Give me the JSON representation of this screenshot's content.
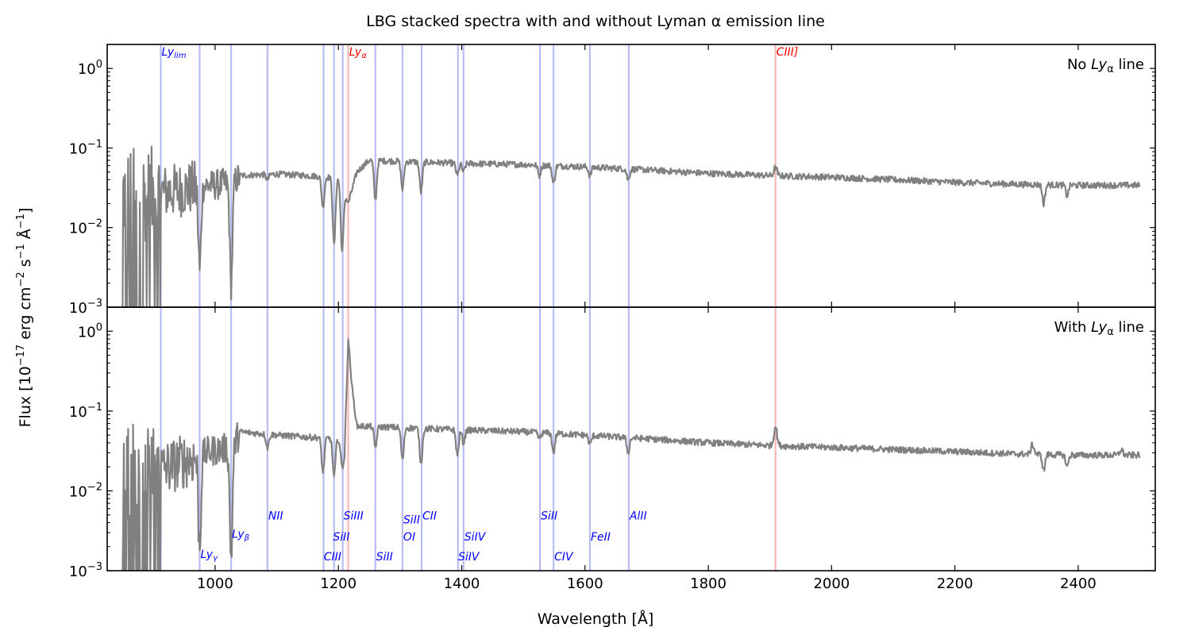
{
  "figure": {
    "title": "LBG stacked spectra with and without Lyman α emission line",
    "xlabel": "Wavelength [Å]",
    "ylabel_main": "Flux [10",
    "ylabel_exp1": "−17",
    "ylabel_mid": " erg cm",
    "ylabel_exp2": "−2",
    "ylabel_mid2": " s",
    "ylabel_exp3": "−1",
    "ylabel_mid3": " Å",
    "ylabel_exp4": "−1",
    "ylabel_end": "]"
  },
  "colors": {
    "spectrum": "#808080",
    "absorption_line": "#b8bcf4",
    "emission_line": "#f4b8b8",
    "absorption_text": "#0000ff",
    "emission_text": "#ff0000"
  },
  "chart_data": [
    {
      "panel": "top",
      "type": "line",
      "title": "",
      "label": "No Lyα line",
      "label_text": "No ",
      "label_main": "Ly",
      "label_sub": "α",
      "label_tail": " line",
      "xlim": [
        825,
        2525
      ],
      "ylim": [
        0.001,
        2.0
      ],
      "yscale": "log",
      "xticks": [
        1000,
        1200,
        1400,
        1600,
        1800,
        2000,
        2200,
        2400
      ],
      "xticklabels": [],
      "yticks": [
        0.001,
        0.01,
        0.1,
        1
      ],
      "yticklabels": [
        {
          "base": "10",
          "exp": "−3"
        },
        {
          "base": "10",
          "exp": "−2"
        },
        {
          "base": "10",
          "exp": "−1"
        },
        {
          "base": "10",
          "exp": "0"
        }
      ],
      "continuum": [
        [
          912,
          0.03
        ],
        [
          975,
          0.035
        ],
        [
          1000,
          0.036
        ],
        [
          1026,
          0.038
        ],
        [
          1040,
          0.045
        ],
        [
          1100,
          0.047
        ],
        [
          1150,
          0.045
        ],
        [
          1200,
          0.042
        ],
        [
          1216,
          0.02
        ],
        [
          1230,
          0.05
        ],
        [
          1250,
          0.07
        ],
        [
          1300,
          0.068
        ],
        [
          1400,
          0.064
        ],
        [
          1500,
          0.062
        ],
        [
          1600,
          0.058
        ],
        [
          1700,
          0.053
        ],
        [
          1800,
          0.048
        ],
        [
          1900,
          0.045
        ],
        [
          2000,
          0.043
        ],
        [
          2100,
          0.04
        ],
        [
          2200,
          0.037
        ],
        [
          2300,
          0.035
        ],
        [
          2400,
          0.034
        ],
        [
          2500,
          0.034
        ]
      ],
      "features": [
        [
          975,
          0.003
        ],
        [
          1026,
          0.002
        ],
        [
          1085,
          0.04
        ],
        [
          1175,
          0.018
        ],
        [
          1193,
          0.006
        ],
        [
          1206,
          0.005
        ],
        [
          1260,
          0.022
        ],
        [
          1304,
          0.03
        ],
        [
          1334,
          0.028
        ],
        [
          1393,
          0.045
        ],
        [
          1403,
          0.05
        ],
        [
          1526,
          0.045
        ],
        [
          1549,
          0.035
        ],
        [
          1608,
          0.045
        ],
        [
          1670,
          0.04
        ],
        [
          2344,
          0.02
        ],
        [
          2382,
          0.025
        ]
      ],
      "emission": [
        [
          1909,
          0.057
        ]
      ]
    },
    {
      "panel": "bottom",
      "type": "line",
      "title": "",
      "label": "With Lyα line",
      "label_text": "With ",
      "label_main": "Ly",
      "label_sub": "α",
      "label_tail": " line",
      "xlim": [
        825,
        2525
      ],
      "ylim": [
        0.001,
        2.0
      ],
      "yscale": "log",
      "xticks": [
        1000,
        1200,
        1400,
        1600,
        1800,
        2000,
        2200,
        2400
      ],
      "xticklabels": [
        "1000",
        "1200",
        "1400",
        "1600",
        "1800",
        "2000",
        "2200",
        "2400"
      ],
      "yticks": [
        0.001,
        0.01,
        0.1,
        1
      ],
      "yticklabels": [
        {
          "base": "10",
          "exp": "−3"
        },
        {
          "base": "10",
          "exp": "−2"
        },
        {
          "base": "10",
          "exp": "−1"
        },
        {
          "base": "10",
          "exp": "0"
        }
      ],
      "continuum": [
        [
          912,
          0.02
        ],
        [
          975,
          0.03
        ],
        [
          1000,
          0.034
        ],
        [
          1026,
          0.036
        ],
        [
          1040,
          0.055
        ],
        [
          1100,
          0.05
        ],
        [
          1150,
          0.047
        ],
        [
          1200,
          0.045
        ],
        [
          1210,
          0.03
        ],
        [
          1216,
          0.82
        ],
        [
          1222,
          0.2
        ],
        [
          1230,
          0.065
        ],
        [
          1300,
          0.062
        ],
        [
          1400,
          0.058
        ],
        [
          1500,
          0.055
        ],
        [
          1600,
          0.05
        ],
        [
          1700,
          0.045
        ],
        [
          1800,
          0.04
        ],
        [
          1900,
          0.037
        ],
        [
          2000,
          0.035
        ],
        [
          2100,
          0.033
        ],
        [
          2200,
          0.031
        ],
        [
          2300,
          0.029
        ],
        [
          2400,
          0.028
        ],
        [
          2500,
          0.028
        ]
      ],
      "features": [
        [
          975,
          0.002
        ],
        [
          1026,
          0.0015
        ],
        [
          1085,
          0.035
        ],
        [
          1175,
          0.017
        ],
        [
          1193,
          0.015
        ],
        [
          1206,
          0.02
        ],
        [
          1260,
          0.035
        ],
        [
          1304,
          0.024
        ],
        [
          1334,
          0.022
        ],
        [
          1393,
          0.028
        ],
        [
          1403,
          0.04
        ],
        [
          1526,
          0.045
        ],
        [
          1549,
          0.03
        ],
        [
          1608,
          0.038
        ],
        [
          1670,
          0.03
        ],
        [
          2344,
          0.018
        ],
        [
          2382,
          0.02
        ]
      ],
      "emission": [
        [
          1909,
          0.065
        ],
        [
          2326,
          0.038
        ],
        [
          2470,
          0.033
        ]
      ]
    }
  ],
  "line_markers": [
    {
      "x": 912,
      "kind": "absorption"
    },
    {
      "x": 975,
      "kind": "absorption"
    },
    {
      "x": 1026,
      "kind": "absorption"
    },
    {
      "x": 1085,
      "kind": "absorption"
    },
    {
      "x": 1176,
      "kind": "absorption"
    },
    {
      "x": 1193,
      "kind": "absorption"
    },
    {
      "x": 1207,
      "kind": "absorption"
    },
    {
      "x": 1216,
      "kind": "emission"
    },
    {
      "x": 1260,
      "kind": "absorption"
    },
    {
      "x": 1304,
      "kind": "absorption"
    },
    {
      "x": 1335,
      "kind": "absorption"
    },
    {
      "x": 1394,
      "kind": "absorption"
    },
    {
      "x": 1403,
      "kind": "absorption"
    },
    {
      "x": 1527,
      "kind": "absorption"
    },
    {
      "x": 1549,
      "kind": "absorption"
    },
    {
      "x": 1608,
      "kind": "absorption"
    },
    {
      "x": 1671,
      "kind": "absorption"
    },
    {
      "x": 1909,
      "kind": "emission"
    }
  ],
  "line_labels": [
    {
      "id": "ly-lim",
      "panel": "top",
      "x": 912,
      "y": 1.45,
      "main": "Ly",
      "sub": "lim",
      "kind": "absorption"
    },
    {
      "id": "ly-alpha",
      "panel": "top",
      "x": 1216,
      "y": 1.45,
      "main": "Ly",
      "sub": "α",
      "kind": "emission"
    },
    {
      "id": "ciii-semi",
      "panel": "top",
      "x": 1909,
      "y": 1.45,
      "main": "CIII]",
      "sub": "",
      "kind": "emission"
    },
    {
      "id": "ly-gamma",
      "panel": "bottom",
      "x": 975,
      "y": 0.00145,
      "main": "Ly",
      "sub": "γ",
      "kind": "absorption"
    },
    {
      "id": "ly-beta",
      "panel": "bottom",
      "x": 1026,
      "y": 0.0026,
      "main": "Ly",
      "sub": "β",
      "kind": "absorption"
    },
    {
      "id": "nii",
      "panel": "bottom",
      "x": 1085,
      "y": 0.0044,
      "main": "NII",
      "sub": "",
      "kind": "absorption"
    },
    {
      "id": "ciii",
      "panel": "bottom",
      "x": 1175,
      "y": 0.00135,
      "main": "CIII",
      "sub": "",
      "kind": "absorption"
    },
    {
      "id": "sii-1190",
      "panel": "bottom",
      "x": 1190,
      "y": 0.0024,
      "main": "SiII",
      "sub": "",
      "kind": "absorption"
    },
    {
      "id": "siiii",
      "panel": "bottom",
      "x": 1207,
      "y": 0.0044,
      "main": "SiIII",
      "sub": "",
      "kind": "absorption"
    },
    {
      "id": "sii-1260",
      "panel": "bottom",
      "x": 1260,
      "y": 0.00135,
      "main": "SiII",
      "sub": "",
      "kind": "absorption"
    },
    {
      "id": "sii-1304",
      "panel": "bottom",
      "x": 1304,
      "y": 0.0039,
      "main": "SiII",
      "sub": "",
      "kind": "absorption"
    },
    {
      "id": "oi",
      "panel": "bottom",
      "x": 1304,
      "y": 0.0024,
      "main": "OI",
      "sub": "",
      "kind": "absorption"
    },
    {
      "id": "cii",
      "panel": "bottom",
      "x": 1335,
      "y": 0.0044,
      "main": "CII",
      "sub": "",
      "kind": "absorption"
    },
    {
      "id": "siiv-1393",
      "panel": "bottom",
      "x": 1393,
      "y": 0.00135,
      "main": "SiIV",
      "sub": "",
      "kind": "absorption"
    },
    {
      "id": "siiv-1403",
      "panel": "bottom",
      "x": 1403,
      "y": 0.0024,
      "main": "SiIV",
      "sub": "",
      "kind": "absorption"
    },
    {
      "id": "sii-1527",
      "panel": "bottom",
      "x": 1527,
      "y": 0.0044,
      "main": "SiII",
      "sub": "",
      "kind": "absorption"
    },
    {
      "id": "civ",
      "panel": "bottom",
      "x": 1549,
      "y": 0.00135,
      "main": "CIV",
      "sub": "",
      "kind": "absorption"
    },
    {
      "id": "feii",
      "panel": "bottom",
      "x": 1608,
      "y": 0.0024,
      "main": "FeII",
      "sub": "",
      "kind": "absorption"
    },
    {
      "id": "alii",
      "panel": "bottom",
      "x": 1671,
      "y": 0.0044,
      "main": "AlII",
      "sub": "",
      "kind": "absorption"
    }
  ]
}
